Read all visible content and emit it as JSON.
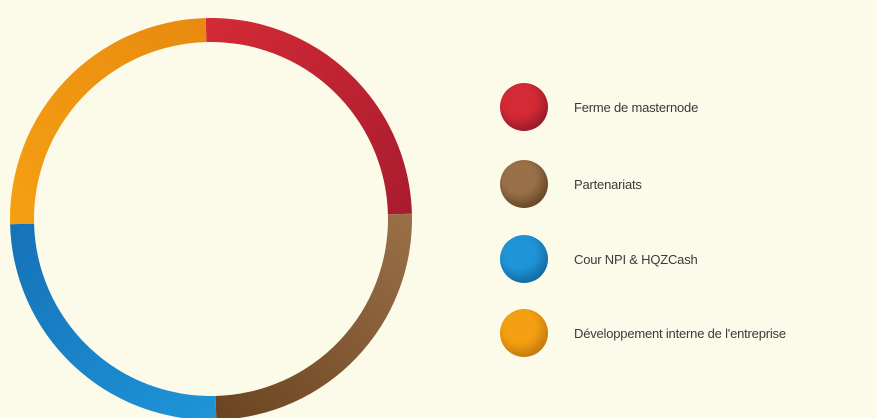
{
  "chart_data": {
    "type": "pie",
    "donut": true,
    "legend_position": "right",
    "slices": [
      {
        "label": "Ferme de masternode",
        "value": 25,
        "color": "#d42a36",
        "color_dark": "#a81c2e"
      },
      {
        "label": "Partenariats",
        "value": 25,
        "color": "#9a7048",
        "color_dark": "#6a4420"
      },
      {
        "label": "Cour NPI & HQZCash",
        "value": 25,
        "color": "#1f95d8",
        "color_dark": "#1572b8"
      },
      {
        "label": "Développement interne de l'entreprise",
        "value": 25,
        "color": "#f5a012",
        "color_dark": "#e88a10"
      }
    ]
  }
}
